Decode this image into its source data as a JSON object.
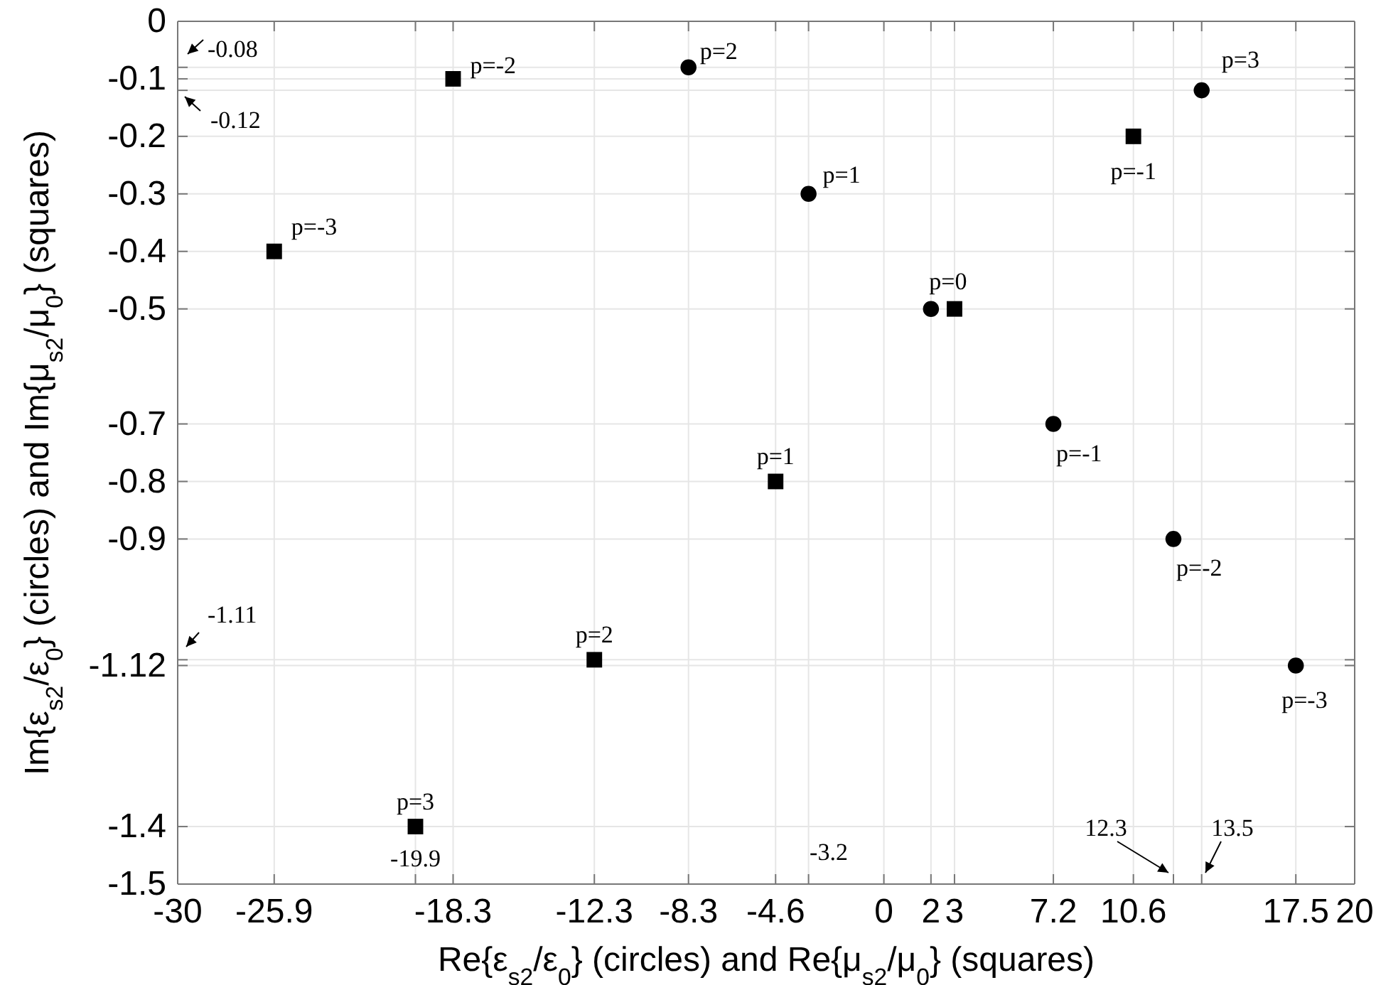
{
  "chart_data": {
    "type": "scatter",
    "xlabel": "Re{ε$_{s2}$/ε$_{0}$} (circles) and Re{μ$_{s2}$/μ$_{0}$} (squares)",
    "ylabel": "Im{ε$_{s2}$/ε$_{0}$} (circles) and Im{μ$_{s2}$/μ$_{0}$} (squares)",
    "xlim": [
      -30,
      20
    ],
    "ylim": [
      -1.5,
      0
    ],
    "xticks": [
      -30,
      -25.9,
      {
        "value": -19.9,
        "label": null
      },
      -18.3,
      -12.3,
      -8.3,
      -4.6,
      {
        "value": -3.2,
        "label": null
      },
      0,
      2,
      3,
      7.2,
      10.6,
      {
        "value": 12.3,
        "label": null
      },
      {
        "value": 13.5,
        "label": null
      },
      17.5,
      20
    ],
    "yticks": [
      0,
      {
        "value": -0.08,
        "label": null
      },
      -0.1,
      {
        "value": -0.12,
        "label": null
      },
      -0.2,
      -0.3,
      -0.4,
      -0.5,
      -0.7,
      -0.8,
      -0.9,
      {
        "value": -1.11,
        "label": null
      },
      -1.12,
      -1.4,
      -1.5
    ],
    "grid": true,
    "series": [
      {
        "color": "#000000",
        "marker": "circle",
        "x": [
          -8.3,
          -3.2,
          2,
          7.2,
          12.3,
          17.5,
          13.5
        ],
        "values": [
          -0.08,
          -0.3,
          -0.5,
          -0.7,
          -0.9,
          -1.12,
          -0.12
        ]
      },
      {
        "color": "#000000",
        "marker": "square",
        "x": [
          -18.3,
          -25.9,
          -4.6,
          3,
          10.6,
          -12.3,
          -19.9
        ],
        "values": [
          -0.1,
          -0.4,
          -0.8,
          -0.5,
          -0.2,
          -1.11,
          -1.4
        ]
      }
    ],
    "annotations": [
      {
        "text": "p=2",
        "x": -8.3,
        "y": -0.08
      },
      {
        "text": "p=1",
        "x": -3.2,
        "y": -0.3
      },
      {
        "text": "p=0",
        "x": 2,
        "y": -0.5
      },
      {
        "text": "p=-1",
        "x": 7.2,
        "y": -0.7
      },
      {
        "text": "p=-2",
        "x": 12.3,
        "y": -0.9
      },
      {
        "text": "p=-3",
        "x": 17.5,
        "y": -1.12
      },
      {
        "text": "p=3",
        "x": 13.5,
        "y": -0.12
      },
      {
        "text": "p=-2",
        "x": -18.3,
        "y": -0.1
      },
      {
        "text": "p=-3",
        "x": -25.9,
        "y": -0.4
      },
      {
        "text": "p=1",
        "x": -4.6,
        "y": -0.8
      },
      {
        "text": "p=-1",
        "x": 10.6,
        "y": -0.2
      },
      {
        "text": "p=2",
        "x": -12.3,
        "y": -1.11
      },
      {
        "text": "p=3",
        "x": -19.9,
        "y": -1.4
      },
      "-0.08",
      "-0.12",
      "-1.11",
      {
        "text": "-19.9",
        "x": -19.9,
        "y": -1.4
      },
      "-3.2",
      "12.3",
      "13.5"
    ]
  }
}
